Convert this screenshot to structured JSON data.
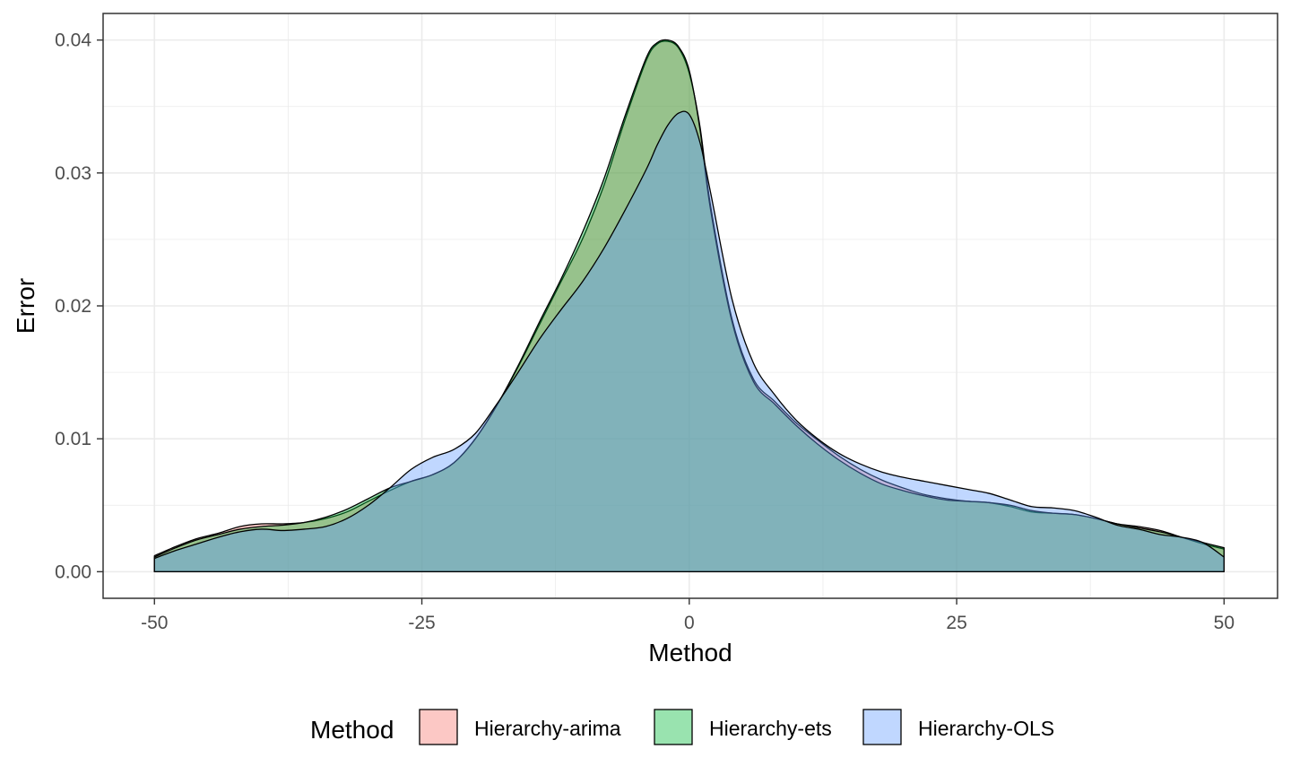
{
  "chart_data": {
    "type": "area",
    "title": "",
    "xlabel": "Method",
    "ylabel": "Error",
    "xlim": [
      -54.8,
      55.0
    ],
    "ylim": [
      -0.002,
      0.042
    ],
    "x_ticks": [
      -50,
      -25,
      0,
      25,
      50
    ],
    "x_tick_labels": [
      "-50",
      "-25",
      "0",
      "25",
      "50"
    ],
    "y_ticks": [
      0.0,
      0.01,
      0.02,
      0.03,
      0.04
    ],
    "y_tick_labels": [
      "0.00",
      "0.01",
      "0.02",
      "0.03",
      "0.04"
    ],
    "grid": true,
    "legend": {
      "title": "Method",
      "placement": "bottom"
    },
    "x": [
      -50,
      -48,
      -46,
      -44,
      -42,
      -40,
      -38,
      -36,
      -34,
      -32,
      -30,
      -28,
      -26,
      -24,
      -22,
      -20,
      -18,
      -16,
      -14,
      -12,
      -10,
      -8,
      -6,
      -4,
      -3,
      -2,
      -1,
      0,
      1,
      2,
      4,
      6,
      8,
      10,
      12,
      14,
      16,
      18,
      20,
      22,
      24,
      26,
      28,
      30,
      32,
      34,
      36,
      38,
      40,
      42,
      44,
      46,
      48,
      50
    ],
    "series": [
      {
        "name": "Hierarchy-arima",
        "color": "#F8766D",
        "values": [
          0.0012,
          0.0019,
          0.0025,
          0.0029,
          0.0034,
          0.0036,
          0.0036,
          0.0037,
          0.004,
          0.0045,
          0.0053,
          0.0061,
          0.0068,
          0.0073,
          0.0082,
          0.01,
          0.0125,
          0.0154,
          0.0186,
          0.0218,
          0.025,
          0.029,
          0.034,
          0.0385,
          0.0397,
          0.0399,
          0.0394,
          0.0375,
          0.0335,
          0.0275,
          0.019,
          0.0145,
          0.0128,
          0.0112,
          0.0099,
          0.0087,
          0.0077,
          0.0069,
          0.0063,
          0.0058,
          0.0055,
          0.0053,
          0.0052,
          0.0049,
          0.0045,
          0.0044,
          0.0043,
          0.004,
          0.0036,
          0.0034,
          0.0031,
          0.0026,
          0.0021,
          0.0017
        ]
      },
      {
        "name": "Hierarchy-ets",
        "color": "#00BA38",
        "values": [
          0.0011,
          0.0018,
          0.0024,
          0.0028,
          0.0032,
          0.0034,
          0.0035,
          0.0037,
          0.0041,
          0.0047,
          0.0055,
          0.0063,
          0.0068,
          0.0073,
          0.0082,
          0.01,
          0.0125,
          0.0155,
          0.0188,
          0.022,
          0.0255,
          0.0295,
          0.0343,
          0.0387,
          0.0398,
          0.04,
          0.0395,
          0.0377,
          0.0333,
          0.0272,
          0.0188,
          0.0143,
          0.0126,
          0.011,
          0.0096,
          0.0084,
          0.0074,
          0.0066,
          0.0061,
          0.0057,
          0.0054,
          0.0053,
          0.0052,
          0.005,
          0.0046,
          0.0044,
          0.0043,
          0.004,
          0.0036,
          0.0033,
          0.003,
          0.0026,
          0.0022,
          0.0018
        ]
      },
      {
        "name": "Hierarchy-OLS",
        "color": "#619CFF",
        "values": [
          0.001,
          0.0016,
          0.0021,
          0.0026,
          0.003,
          0.0032,
          0.0031,
          0.0032,
          0.0034,
          0.004,
          0.005,
          0.0063,
          0.0077,
          0.0086,
          0.0092,
          0.0104,
          0.0126,
          0.015,
          0.0175,
          0.0197,
          0.0218,
          0.0243,
          0.0272,
          0.0303,
          0.0321,
          0.0336,
          0.0345,
          0.0344,
          0.0323,
          0.0285,
          0.0205,
          0.0157,
          0.0133,
          0.0114,
          0.01,
          0.0089,
          0.0081,
          0.0075,
          0.0071,
          0.0068,
          0.0065,
          0.0062,
          0.0059,
          0.0054,
          0.0049,
          0.0048,
          0.0046,
          0.0041,
          0.0035,
          0.0032,
          0.0028,
          0.0026,
          0.0022,
          0.0011
        ]
      }
    ]
  },
  "colors": {
    "panel_border": "#333333",
    "grid": "#EBEBEB",
    "outline": "#000000"
  }
}
